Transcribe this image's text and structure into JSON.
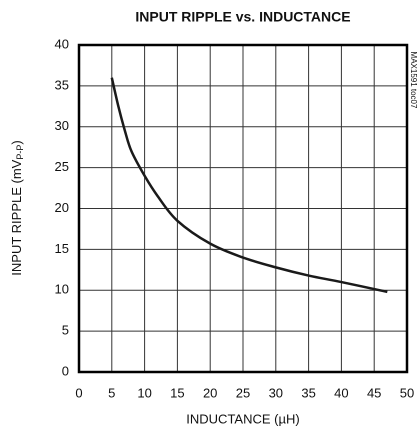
{
  "chart_data": {
    "type": "line",
    "title": "INPUT RIPPLE vs. INDUCTANCE",
    "xlabel": "INDUCTANCE (µH)",
    "ylabel": "INPUT RIPPLE (mV",
    "ylabel_sub": "P-P",
    "ylabel_end": ")",
    "annotation": "MAX1591 toc07",
    "x": [
      5,
      6,
      7,
      8,
      10,
      12,
      15,
      20,
      25,
      30,
      35,
      40,
      47
    ],
    "values": [
      36,
      32.5,
      29.5,
      27,
      24,
      21.5,
      18.5,
      15.7,
      14,
      12.8,
      11.8,
      11,
      9.8
    ],
    "color": "#1a1a1a",
    "xlim": [
      0,
      50
    ],
    "xticks": [
      0,
      5,
      10,
      15,
      20,
      25,
      30,
      35,
      40,
      45,
      50
    ],
    "ylim": [
      0,
      40
    ],
    "yticks": [
      0,
      5,
      10,
      15,
      20,
      25,
      30,
      35,
      40
    ],
    "grid": true
  }
}
